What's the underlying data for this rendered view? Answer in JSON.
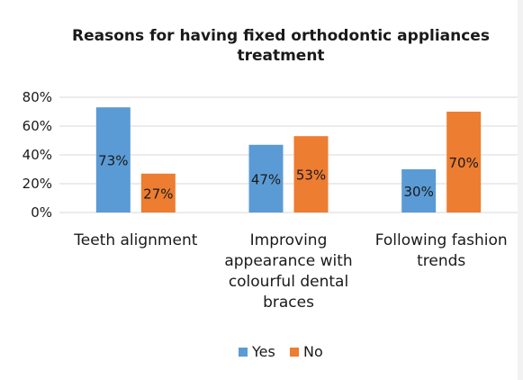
{
  "chart_data": {
    "type": "bar",
    "title_lines": [
      "Reasons for having fixed orthodontic appliances",
      "treatment"
    ],
    "categories": [
      [
        "Teeth alignment"
      ],
      [
        "Improving",
        "appearance with",
        "colourful dental",
        "braces"
      ],
      [
        "Following fashion",
        "trends"
      ]
    ],
    "series": [
      {
        "name": "Yes",
        "values": [
          73,
          47,
          30
        ],
        "labels": [
          "73%",
          "47%",
          "30%"
        ]
      },
      {
        "name": "No",
        "values": [
          27,
          53,
          70
        ],
        "labels": [
          "27%",
          "53%",
          "70%"
        ]
      }
    ],
    "ylim": [
      0,
      80
    ],
    "yticks": [
      {
        "value": 0,
        "label": "0%"
      },
      {
        "value": 20,
        "label": "20%"
      },
      {
        "value": 40,
        "label": "40%"
      },
      {
        "value": 60,
        "label": "60%"
      },
      {
        "value": 80,
        "label": "80%"
      }
    ],
    "grid": true,
    "legend_position": "bottom"
  },
  "colors": {
    "yes": "#5b9bd5",
    "no": "#ed7d31",
    "grid": "#d9d9d9"
  }
}
